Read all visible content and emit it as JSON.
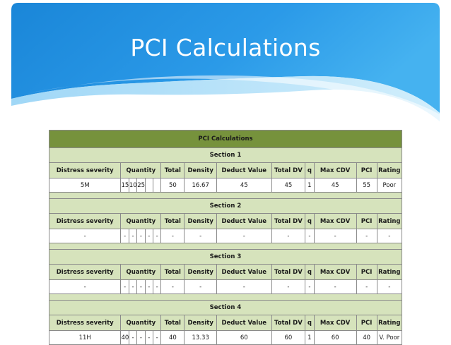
{
  "slide": {
    "title": "PCI Calculations",
    "colors": {
      "header_blue": "#1e90e0",
      "title_bar": "#76923c",
      "section_bar": "#d6e3bc"
    }
  },
  "table": {
    "title": "PCI Calculations",
    "headers": {
      "severity": "Distress severity",
      "quantity": "Quantity",
      "total": "Total",
      "density": "Density",
      "deduct": "Deduct Value",
      "total_dv": "Total DV",
      "q": "q",
      "max_cdv": "Max CDV",
      "pci": "PCI",
      "rating": "Rating"
    },
    "sections": [
      {
        "label": "Section 1",
        "row": {
          "severity": "5M",
          "quantities": [
            "15",
            "10",
            "25",
            "",
            ""
          ],
          "total": "50",
          "density": "16.67",
          "deduct": "45",
          "total_dv": "45",
          "q": "1",
          "max_cdv": "45",
          "pci": "55",
          "rating": "Poor"
        }
      },
      {
        "label": "Section 2",
        "row": {
          "severity": "-",
          "quantities": [
            "-",
            "-",
            "-",
            "-",
            "-"
          ],
          "total": "-",
          "density": "-",
          "deduct": "-",
          "total_dv": "-",
          "q": "-",
          "max_cdv": "-",
          "pci": "-",
          "rating": "-"
        }
      },
      {
        "label": "Section 3",
        "row": {
          "severity": "-",
          "quantities": [
            "-",
            "-",
            "-",
            "-",
            "-"
          ],
          "total": "-",
          "density": "-",
          "deduct": "-",
          "total_dv": "-",
          "q": "-",
          "max_cdv": "-",
          "pci": "-",
          "rating": "-"
        }
      },
      {
        "label": "Section 4",
        "row": {
          "severity": "11H",
          "quantities": [
            "40",
            "-",
            "-",
            "-",
            "-"
          ],
          "total": "40",
          "density": "13.33",
          "deduct": "60",
          "total_dv": "60",
          "q": "1",
          "max_cdv": "60",
          "pci": "40",
          "rating": "V. Poor"
        }
      }
    ]
  }
}
